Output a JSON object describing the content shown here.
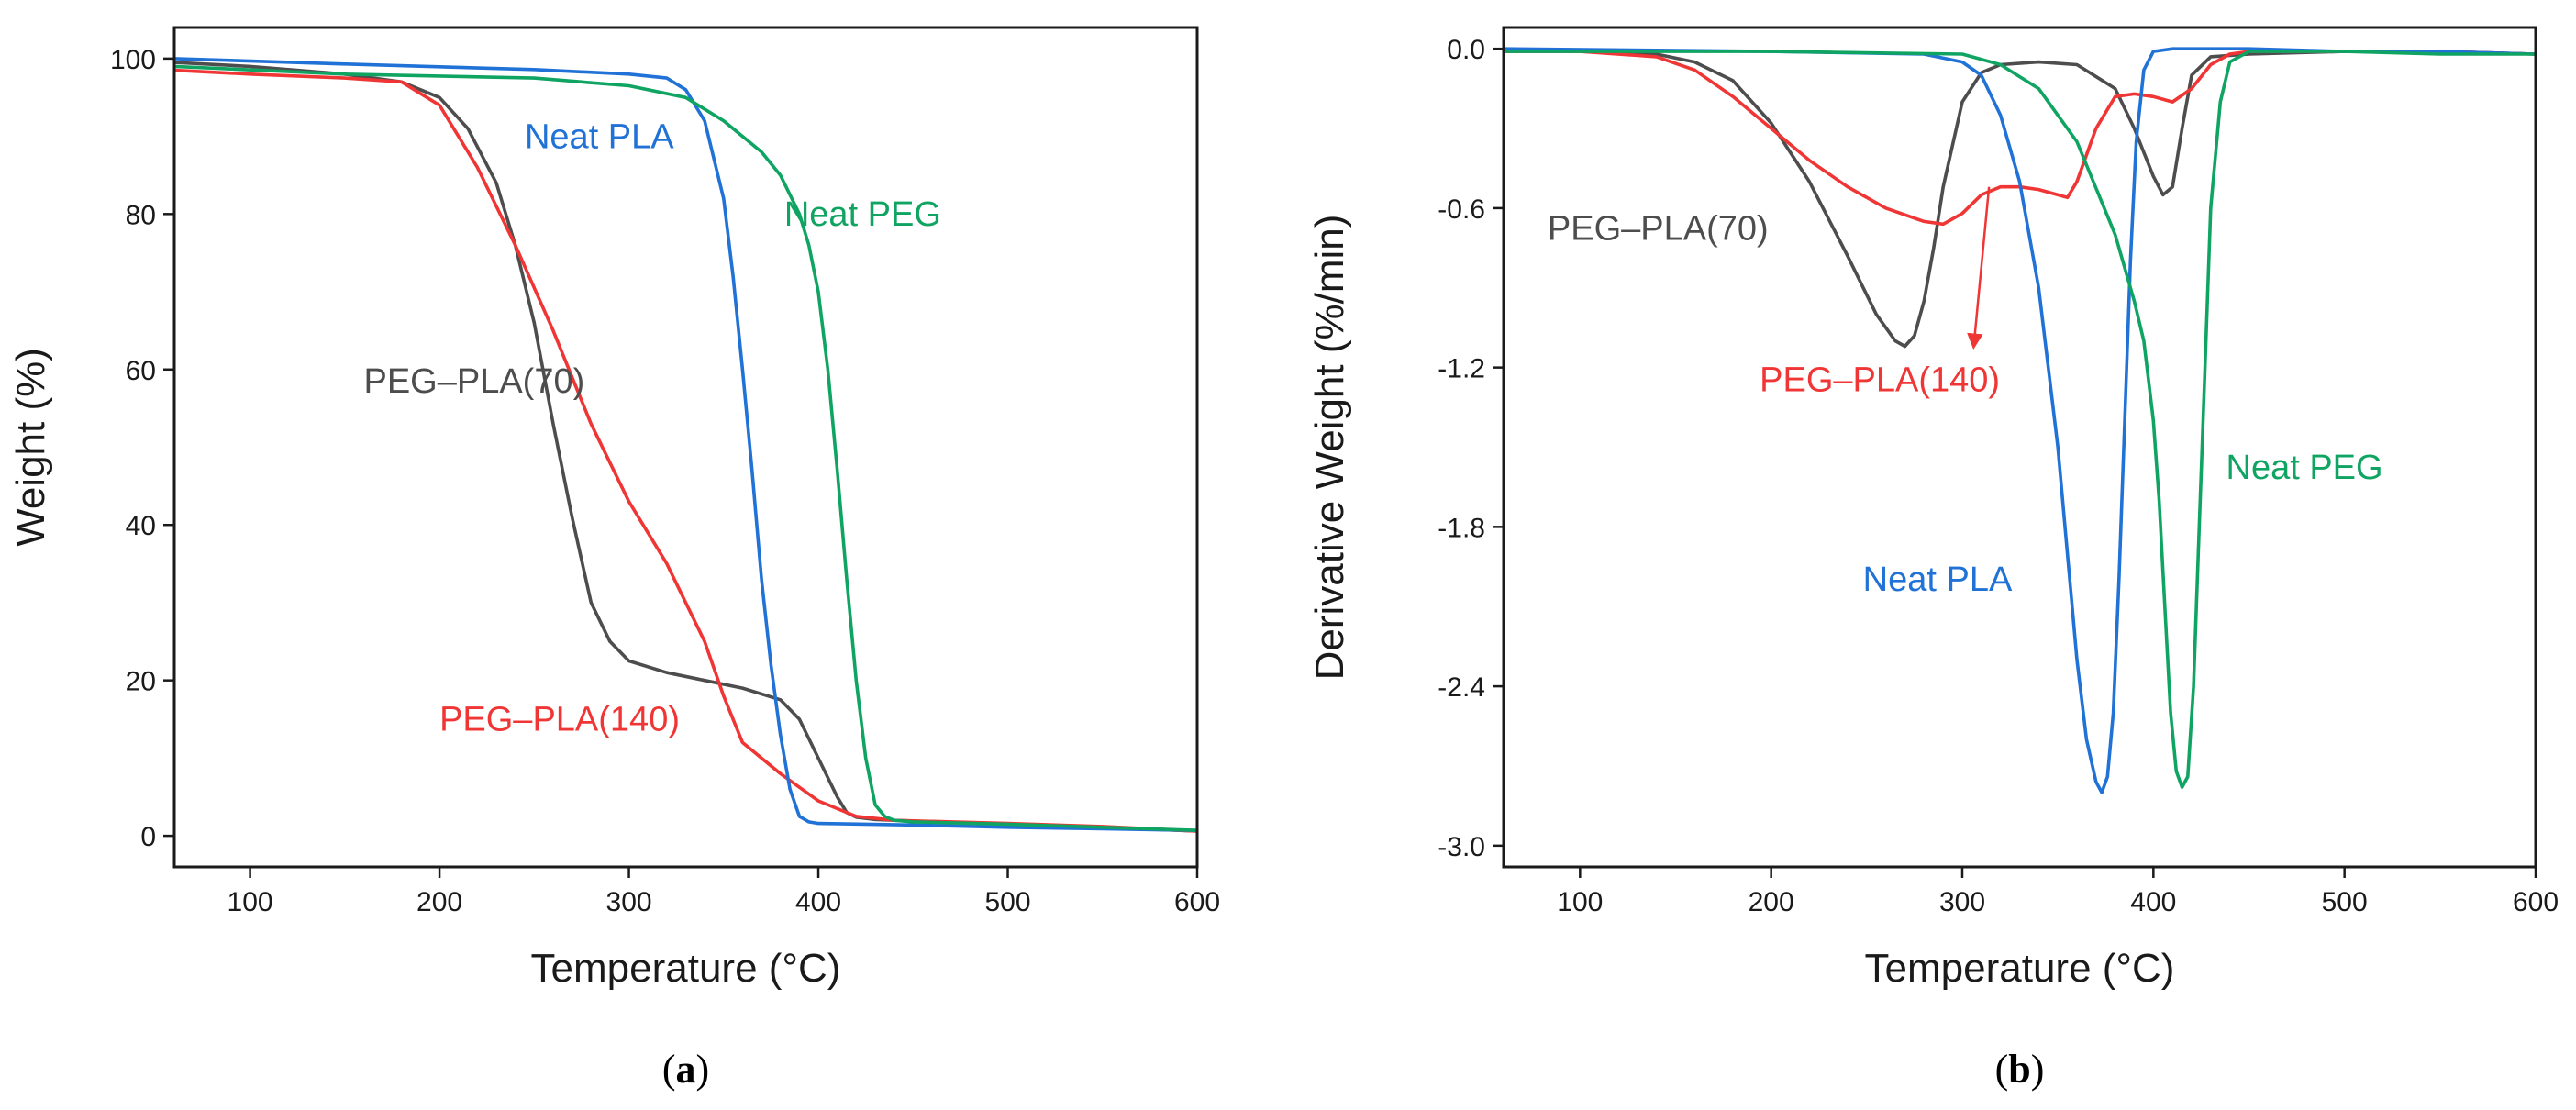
{
  "chart_data": [
    {
      "panel": "a",
      "type": "line",
      "xlabel": "Temperature (°C)",
      "ylabel": "Weight (%)",
      "xlim": [
        60,
        600
      ],
      "ylim": [
        -4,
        104
      ],
      "xticks": [
        100,
        200,
        300,
        400,
        500,
        600
      ],
      "yticks": [
        0,
        20,
        40,
        60,
        80,
        100
      ],
      "caption_open": "(",
      "caption_letter": "a",
      "caption_close": ")",
      "series": [
        {
          "name": "PEG–PLA(70)",
          "color": "#4d4d4d",
          "label": {
            "text": "PEG–PLA(70)",
            "x": 160,
            "y": 57
          },
          "x": [
            60,
            100,
            150,
            180,
            200,
            215,
            230,
            240,
            250,
            260,
            270,
            280,
            290,
            300,
            320,
            340,
            360,
            380,
            390,
            400,
            410,
            415,
            420,
            430,
            450,
            500,
            550,
            600
          ],
          "y": [
            99.5,
            99,
            98,
            97,
            95,
            91,
            84,
            76,
            66,
            53,
            41,
            30,
            25,
            22.5,
            21,
            20,
            19,
            17.5,
            15,
            10,
            5,
            3,
            2.4,
            2.1,
            1.9,
            1.5,
            1.1,
            0.6
          ]
        },
        {
          "name": "PEG–PLA(140)",
          "color": "#f03535",
          "label": {
            "text": "PEG–PLA(140)",
            "x": 200,
            "y": 13.5
          },
          "x": [
            60,
            100,
            150,
            180,
            200,
            220,
            240,
            260,
            280,
            300,
            320,
            340,
            350,
            360,
            380,
            400,
            420,
            440,
            500,
            550,
            600
          ],
          "y": [
            98.5,
            98,
            97.5,
            97,
            94,
            86,
            76,
            65,
            53,
            43,
            35,
            25,
            18,
            12,
            8,
            4.5,
            2.5,
            2.0,
            1.6,
            1.2,
            0.6
          ]
        },
        {
          "name": "Neat PLA",
          "color": "#2072d6",
          "label": {
            "text": "Neat PLA",
            "x": 245,
            "y": 88.5
          },
          "x": [
            60,
            150,
            250,
            300,
            320,
            330,
            340,
            350,
            355,
            360,
            365,
            370,
            375,
            380,
            385,
            390,
            395,
            400,
            450,
            500,
            550,
            600
          ],
          "y": [
            100,
            99.3,
            98.6,
            98,
            97.5,
            96,
            92,
            82,
            72,
            60,
            47,
            33,
            22,
            13,
            6,
            2.5,
            1.8,
            1.6,
            1.4,
            1.1,
            0.9,
            0.7
          ]
        },
        {
          "name": "Neat PEG",
          "color": "#10a463",
          "label": {
            "text": "Neat PEG",
            "x": 382,
            "y": 78.5
          },
          "x": [
            60,
            150,
            250,
            300,
            330,
            350,
            370,
            380,
            390,
            395,
            400,
            405,
            410,
            415,
            420,
            425,
            430,
            435,
            440,
            450,
            500,
            550,
            600
          ],
          "y": [
            99,
            98,
            97.5,
            96.5,
            95,
            92,
            88,
            85,
            80,
            76,
            70,
            60,
            47,
            33,
            20,
            10,
            4,
            2.5,
            2.0,
            1.8,
            1.5,
            1.1,
            0.7
          ]
        }
      ]
    },
    {
      "panel": "b",
      "type": "line",
      "xlabel": "Temperature (°C)",
      "ylabel": "Derivative Weight (%/min)",
      "xlim": [
        60,
        600
      ],
      "ylim": [
        -3.08,
        0.08
      ],
      "xticks": [
        100,
        200,
        300,
        400,
        500,
        600
      ],
      "yticks": [
        0.0,
        -0.6,
        -1.2,
        -1.8,
        -2.4,
        -3.0
      ],
      "ytick_labels": [
        "0.0",
        "-0.6",
        "-1.2",
        "-1.8",
        "-2.4",
        "-3.0"
      ],
      "caption_open": "(",
      "caption_letter": "b",
      "caption_close": ")",
      "annotation": {
        "type": "arrow",
        "from": [
          314,
          -0.52
        ],
        "to": [
          306,
          -1.12
        ],
        "color": "#f03535"
      },
      "series": [
        {
          "name": "PEG–PLA(70)",
          "color": "#4d4d4d",
          "label": {
            "text": "PEG–PLA(70)",
            "x": 83,
            "y": -0.72
          },
          "x": [
            60,
            100,
            140,
            160,
            180,
            200,
            220,
            240,
            255,
            265,
            270,
            275,
            280,
            285,
            290,
            300,
            310,
            320,
            340,
            360,
            380,
            390,
            400,
            405,
            410,
            415,
            420,
            430,
            450,
            500,
            550,
            600
          ],
          "y": [
            -0.01,
            -0.01,
            -0.02,
            -0.05,
            -0.12,
            -0.28,
            -0.5,
            -0.78,
            -1.0,
            -1.1,
            -1.12,
            -1.08,
            -0.95,
            -0.75,
            -0.52,
            -0.2,
            -0.09,
            -0.06,
            -0.05,
            -0.06,
            -0.15,
            -0.3,
            -0.48,
            -0.55,
            -0.52,
            -0.3,
            -0.1,
            -0.03,
            -0.02,
            -0.01,
            -0.01,
            -0.02
          ]
        },
        {
          "name": "PEG–PLA(140)",
          "color": "#f03535",
          "label": {
            "text": "PEG–PLA(140)",
            "x": 194,
            "y": -1.29
          },
          "x": [
            60,
            100,
            140,
            160,
            180,
            200,
            220,
            240,
            260,
            280,
            290,
            300,
            310,
            320,
            330,
            340,
            350,
            355,
            360,
            370,
            380,
            390,
            400,
            410,
            420,
            430,
            440,
            450,
            500,
            550,
            600
          ],
          "y": [
            -0.01,
            -0.01,
            -0.03,
            -0.08,
            -0.18,
            -0.3,
            -0.42,
            -0.52,
            -0.6,
            -0.65,
            -0.66,
            -0.62,
            -0.55,
            -0.52,
            -0.52,
            -0.53,
            -0.55,
            -0.56,
            -0.5,
            -0.3,
            -0.18,
            -0.17,
            -0.18,
            -0.2,
            -0.15,
            -0.06,
            -0.02,
            -0.01,
            -0.01,
            -0.01,
            -0.02
          ]
        },
        {
          "name": "Neat PLA",
          "color": "#2072d6",
          "label": {
            "text": "Neat PLA",
            "x": 248,
            "y": -2.04
          },
          "x": [
            60,
            200,
            280,
            300,
            310,
            320,
            330,
            340,
            350,
            355,
            360,
            365,
            370,
            373,
            376,
            379,
            382,
            385,
            388,
            391,
            395,
            400,
            410,
            450,
            500,
            550,
            600
          ],
          "y": [
            0.0,
            -0.01,
            -0.02,
            -0.05,
            -0.1,
            -0.25,
            -0.5,
            -0.9,
            -1.5,
            -1.9,
            -2.3,
            -2.6,
            -2.76,
            -2.8,
            -2.74,
            -2.5,
            -2.0,
            -1.4,
            -0.8,
            -0.35,
            -0.08,
            -0.01,
            0.0,
            0.0,
            -0.01,
            -0.01,
            -0.02
          ]
        },
        {
          "name": "Neat PEG",
          "color": "#10a463",
          "label": {
            "text": "Neat PEG",
            "x": 438,
            "y": -1.62
          },
          "x": [
            60,
            200,
            300,
            320,
            340,
            360,
            380,
            390,
            395,
            400,
            403,
            406,
            409,
            412,
            415,
            418,
            421,
            424,
            427,
            430,
            435,
            440,
            450,
            500,
            550,
            600
          ],
          "y": [
            -0.01,
            -0.01,
            -0.02,
            -0.06,
            -0.15,
            -0.35,
            -0.7,
            -0.95,
            -1.1,
            -1.4,
            -1.7,
            -2.1,
            -2.5,
            -2.72,
            -2.78,
            -2.74,
            -2.4,
            -1.8,
            -1.2,
            -0.6,
            -0.2,
            -0.05,
            -0.01,
            -0.01,
            -0.02,
            -0.02
          ]
        }
      ]
    }
  ]
}
